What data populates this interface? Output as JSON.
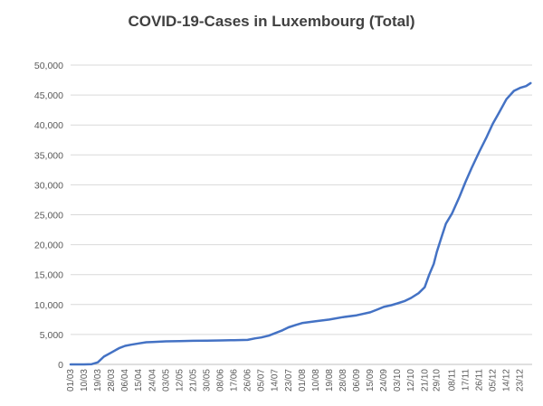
{
  "chart_data": {
    "type": "line",
    "title": "COVID-19-Cases in Luxembourg (Total)",
    "xlabel": "",
    "ylabel": "",
    "ylim": [
      0,
      50000
    ],
    "yticks": [
      "0",
      "5,000",
      "10,000",
      "15,000",
      "20,000",
      "25,000",
      "30,000",
      "35,000",
      "40,000",
      "45,000",
      "50,000"
    ],
    "x_tick_labels": [
      "01/03",
      "10/03",
      "19/03",
      "28/03",
      "06/04",
      "15/04",
      "24/04",
      "03/05",
      "12/05",
      "21/05",
      "30/05",
      "08/06",
      "17/06",
      "26/06",
      "05/07",
      "14/07",
      "23/07",
      "01/08",
      "10/08",
      "19/08",
      "28/08",
      "06/09",
      "15/09",
      "24/09",
      "03/10",
      "12/10",
      "21/10",
      "29/10",
      "08/11",
      "17/11",
      "26/11",
      "05/12",
      "14/12",
      "23/12"
    ],
    "grid": true,
    "legend": "none",
    "line_color": "#4472c4",
    "series": [
      {
        "x": [
          "01/03",
          "10/03",
          "15/03",
          "19/03",
          "23/03",
          "28/03",
          "02/04",
          "06/04",
          "10/04",
          "15/04",
          "20/04",
          "24/04",
          "30/04",
          "03/05",
          "12/05",
          "21/05",
          "30/05",
          "08/06",
          "17/06",
          "26/06",
          "01/07",
          "05/07",
          "10/07",
          "14/07",
          "19/07",
          "23/07",
          "28/07",
          "01/08",
          "10/08",
          "19/08",
          "28/08",
          "06/09",
          "15/09",
          "20/09",
          "24/09",
          "29/09",
          "03/10",
          "08/10",
          "12/10",
          "17/10",
          "21/10",
          "24/10",
          "27/10",
          "29/10",
          "01/11",
          "04/11",
          "08/11",
          "13/11",
          "17/11",
          "21/11",
          "26/11",
          "01/12",
          "05/12",
          "09/12",
          "14/12",
          "19/12",
          "23/12",
          "27/12",
          "30/12"
        ],
        "values": [
          0,
          0,
          50,
          350,
          1300,
          2000,
          2700,
          3100,
          3300,
          3500,
          3700,
          3750,
          3800,
          3850,
          3900,
          3950,
          3980,
          4000,
          4050,
          4100,
          4350,
          4500,
          4800,
          5200,
          5700,
          6200,
          6600,
          6900,
          7200,
          7500,
          7900,
          8200,
          8700,
          9200,
          9600,
          9900,
          10200,
          10600,
          11100,
          11900,
          12900,
          15000,
          16800,
          18800,
          21200,
          23500,
          25200,
          28000,
          30500,
          32800,
          35500,
          38000,
          40200,
          42000,
          44300,
          45700,
          46200,
          46500,
          47000
        ]
      }
    ]
  }
}
